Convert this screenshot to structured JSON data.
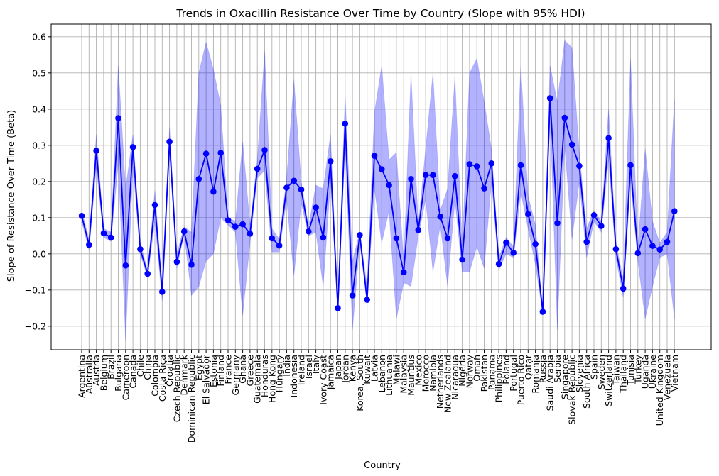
{
  "chart_data": {
    "type": "line",
    "title": "Trends in Oxacillin Resistance Over Time by Country (Slope with 95% HDI)",
    "xlabel": "Country",
    "ylabel": "Slope of Resistance Over Time (Beta)",
    "ylim": [
      -0.265,
      0.635
    ],
    "yticks": [
      -0.2,
      -0.1,
      0.0,
      0.1,
      0.2,
      0.3,
      0.4,
      0.5,
      0.6
    ],
    "ytick_labels": [
      "−0.2",
      "−0.1",
      "0.0",
      "0.1",
      "0.2",
      "0.3",
      "0.4",
      "0.5",
      "0.6"
    ],
    "grid": true,
    "colors": {
      "line": "#0000ff",
      "band": "#aaaaf2",
      "grid": "#b0b0b0"
    },
    "categories": [
      "Argentina",
      "Australia",
      "Austria",
      "Belgium",
      "Brazil",
      "Bulgaria",
      "Cameroon",
      "Canada",
      "Chile",
      "China",
      "Colombia",
      "Costa Rica",
      "Croatia",
      "Czech Republic",
      "Denmark",
      "Dominican Republic",
      "Egypt",
      "El Salvador",
      "Estonia",
      "Finland",
      "France",
      "Germany",
      "Ghana",
      "Greece",
      "Guatemala",
      "Honduras",
      "Hong Kong",
      "Hungary",
      "India",
      "Indonesia",
      "Ireland",
      "Israel",
      "Italy",
      "Ivory Coast",
      "Jamaica",
      "Japan",
      "Jordan",
      "Kenya",
      "Korea, South",
      "Kuwait",
      "Latvia",
      "Lebanon",
      "Lithuania",
      "Malawi",
      "Malaysia",
      "Mauritius",
      "Mexico",
      "Morocco",
      "Namibia",
      "Netherlands",
      "New Zealand",
      "Nicaragua",
      "Nigeria",
      "Norway",
      "Oman",
      "Pakistan",
      "Panama",
      "Philippines",
      "Poland",
      "Portugal",
      "Puerto Rico",
      "Qatar",
      "Romania",
      "Russia",
      "Saudi Arabia",
      "Serbia",
      "Singapore",
      "Slovak Republic",
      "Slovenia",
      "South Africa",
      "Spain",
      "Sweden",
      "Switzerland",
      "Taiwan",
      "Thailand",
      "Tunisia",
      "Turkey",
      "Uganda",
      "Ukraine",
      "United Kingdom",
      "Venezuela",
      "Vietnam"
    ],
    "series": [
      {
        "values": [
          0.105,
          0.025,
          0.285,
          0.057,
          0.045,
          0.375,
          -0.032,
          0.295,
          0.013,
          -0.055,
          0.135,
          -0.105,
          0.31,
          -0.022,
          0.062,
          -0.03,
          0.207,
          0.277,
          0.172,
          0.279,
          0.093,
          0.075,
          0.082,
          0.056,
          0.235,
          0.287,
          0.043,
          0.023,
          0.183,
          0.202,
          0.178,
          0.062,
          0.128,
          0.045,
          0.256,
          -0.15,
          0.36,
          -0.115,
          0.052,
          -0.127,
          0.271,
          0.234,
          0.19,
          0.043,
          -0.051,
          0.207,
          0.066,
          0.218,
          0.218,
          0.103,
          0.043,
          0.215,
          -0.016,
          0.248,
          0.242,
          0.181,
          0.25,
          -0.028,
          0.031,
          0.003,
          0.245,
          0.11,
          0.027,
          -0.16,
          0.43,
          0.085,
          0.376,
          0.302,
          0.243,
          0.033,
          0.107,
          0.077,
          0.32,
          0.013,
          -0.096,
          0.245,
          0.002,
          0.068,
          0.022,
          0.012,
          0.033,
          0.118
        ],
        "lower": [
          0.09,
          0.01,
          0.24,
          0.045,
          0.035,
          0.25,
          -0.24,
          0.24,
          0.0,
          -0.065,
          0.09,
          -0.13,
          0.28,
          -0.04,
          0.055,
          -0.115,
          -0.09,
          -0.02,
          0.0,
          0.1,
          0.08,
          0.06,
          -0.17,
          0.03,
          0.21,
          0.23,
          0.005,
          0.005,
          0.15,
          -0.06,
          0.14,
          0.05,
          0.06,
          -0.09,
          0.2,
          -0.16,
          0.3,
          -0.21,
          0.03,
          -0.14,
          0.18,
          0.03,
          0.12,
          -0.18,
          -0.08,
          -0.09,
          0.05,
          0.15,
          -0.05,
          0.08,
          -0.09,
          0.15,
          -0.05,
          -0.05,
          0.02,
          -0.04,
          0.2,
          -0.045,
          0.0,
          -0.01,
          0.17,
          0.07,
          -0.03,
          -0.165,
          0.39,
          -0.21,
          0.3,
          0.04,
          0.2,
          -0.01,
          0.09,
          0.06,
          0.26,
          -0.01,
          -0.12,
          0.2,
          -0.02,
          -0.18,
          -0.09,
          -0.01,
          0.0,
          -0.18
        ],
        "upper": [
          0.12,
          0.04,
          0.33,
          0.07,
          0.06,
          0.52,
          0.18,
          0.33,
          0.03,
          -0.045,
          0.175,
          -0.09,
          0.35,
          0.0,
          0.075,
          0.06,
          0.5,
          0.585,
          0.51,
          0.41,
          0.1,
          0.09,
          0.31,
          0.08,
          0.26,
          0.56,
          0.07,
          0.04,
          0.21,
          0.48,
          0.2,
          0.075,
          0.19,
          0.18,
          0.33,
          -0.14,
          0.44,
          -0.02,
          0.06,
          -0.09,
          0.39,
          0.52,
          0.26,
          0.28,
          -0.02,
          0.5,
          0.08,
          0.29,
          0.5,
          0.12,
          0.18,
          0.49,
          0.02,
          0.5,
          0.54,
          0.42,
          0.29,
          -0.01,
          0.045,
          0.02,
          0.52,
          0.16,
          0.08,
          -0.155,
          0.52,
          0.42,
          0.59,
          0.57,
          0.28,
          0.07,
          0.12,
          0.09,
          0.4,
          0.03,
          -0.07,
          0.54,
          0.02,
          0.29,
          0.09,
          0.03,
          0.06,
          0.43
        ]
      }
    ]
  }
}
